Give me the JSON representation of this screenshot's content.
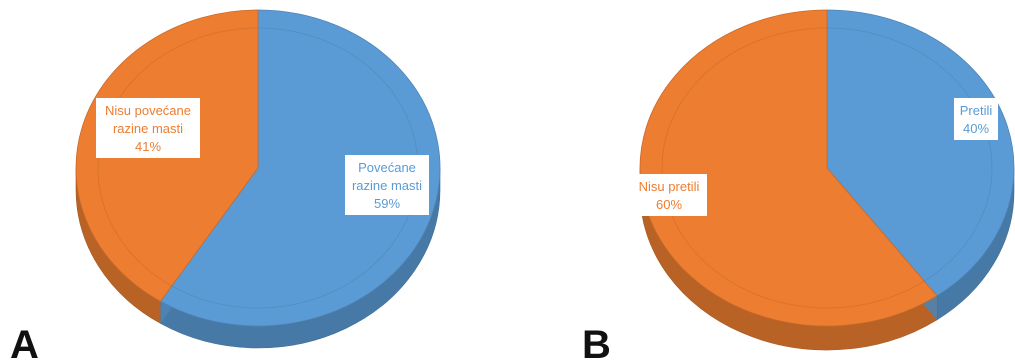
{
  "chart_data": [
    {
      "type": "pie",
      "panel": "A",
      "slices": [
        {
          "label": [
            "Povećane",
            "razine masti"
          ],
          "value_label": "59%",
          "value": 59,
          "color": "#5b9bd5"
        },
        {
          "label": [
            "Nisu povećane",
            "razine masti"
          ],
          "value_label": "41%",
          "value": 41,
          "color": "#ed7d31"
        }
      ]
    },
    {
      "type": "pie",
      "panel": "B",
      "slices": [
        {
          "label": [
            "Pretili"
          ],
          "value_label": "40%",
          "value": 40,
          "color": "#5b9bd5"
        },
        {
          "label": [
            "Nisu pretili"
          ],
          "value_label": "60%",
          "value": 60,
          "color": "#ed7d31"
        }
      ]
    }
  ]
}
